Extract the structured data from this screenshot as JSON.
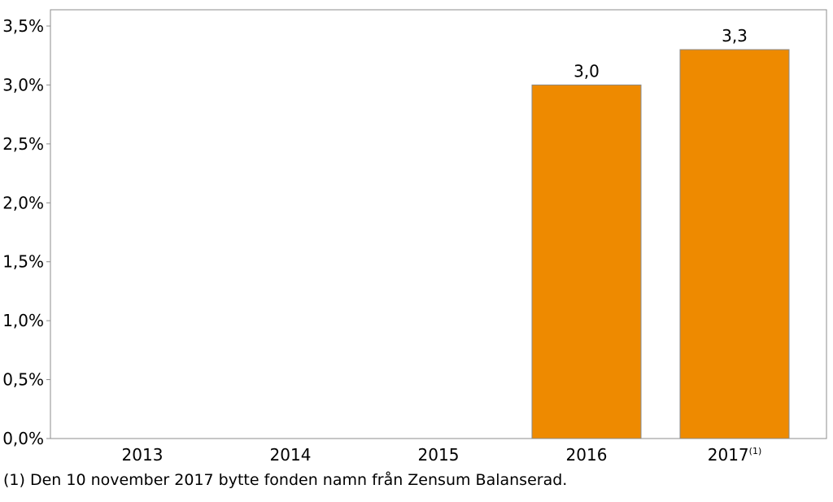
{
  "chart_data": {
    "type": "bar",
    "title": "",
    "xlabel": "",
    "ylabel": "",
    "categories": [
      "2013",
      "2014",
      "2015",
      "2016",
      "2017"
    ],
    "category_superscripts": [
      "",
      "",
      "",
      "",
      "(1)"
    ],
    "values": [
      null,
      null,
      null,
      3.0,
      3.3
    ],
    "data_labels": [
      "",
      "",
      "",
      "3,0",
      "3,3"
    ],
    "y_ticks": [
      0,
      0.5,
      1.0,
      1.5,
      2.0,
      2.5,
      3.0,
      3.5
    ],
    "y_tick_labels": [
      "0,0%",
      "0,5%",
      "1,0%",
      "1,5%",
      "2,0%",
      "2,5%",
      "3,0%",
      "3,5%"
    ],
    "ylim": [
      0,
      3.5
    ],
    "grid": false,
    "legend": "none",
    "bar_color": "#EE8A00",
    "bar_border_color": "#8A8A8A"
  },
  "footnote": "(1) Den 10 november 2017 bytte fonden namn från Zensum Balanserad."
}
